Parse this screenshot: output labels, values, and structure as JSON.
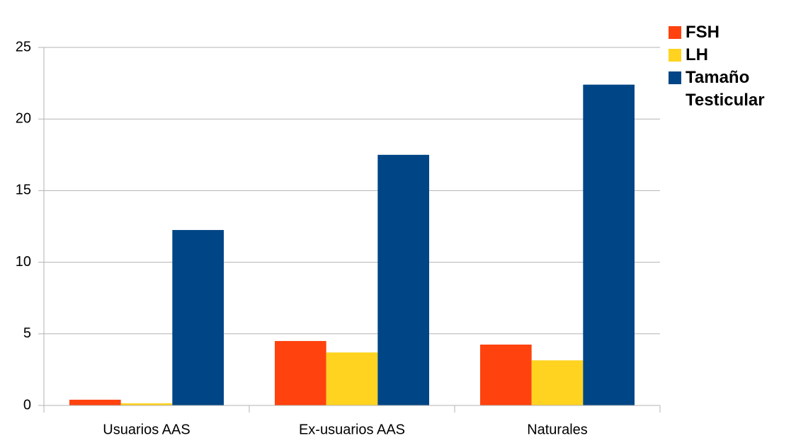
{
  "chart_data": {
    "type": "bar",
    "categories": [
      "Usuarios AAS",
      "Ex-usuarios AAS",
      "Naturales"
    ],
    "series": [
      {
        "name": "FSH",
        "color": "#ff420e",
        "values": [
          0.4,
          4.5,
          4.25
        ]
      },
      {
        "name": "LH",
        "color": "#ffd320",
        "values": [
          0.15,
          3.7,
          3.15
        ]
      },
      {
        "name": "Tamaño Testicular",
        "color": "#004586",
        "values": [
          12.25,
          17.5,
          22.4
        ]
      }
    ],
    "ylim": [
      0,
      25
    ],
    "yticks": [
      0,
      5,
      10,
      15,
      20,
      25
    ],
    "grid": true,
    "legend": "right"
  }
}
